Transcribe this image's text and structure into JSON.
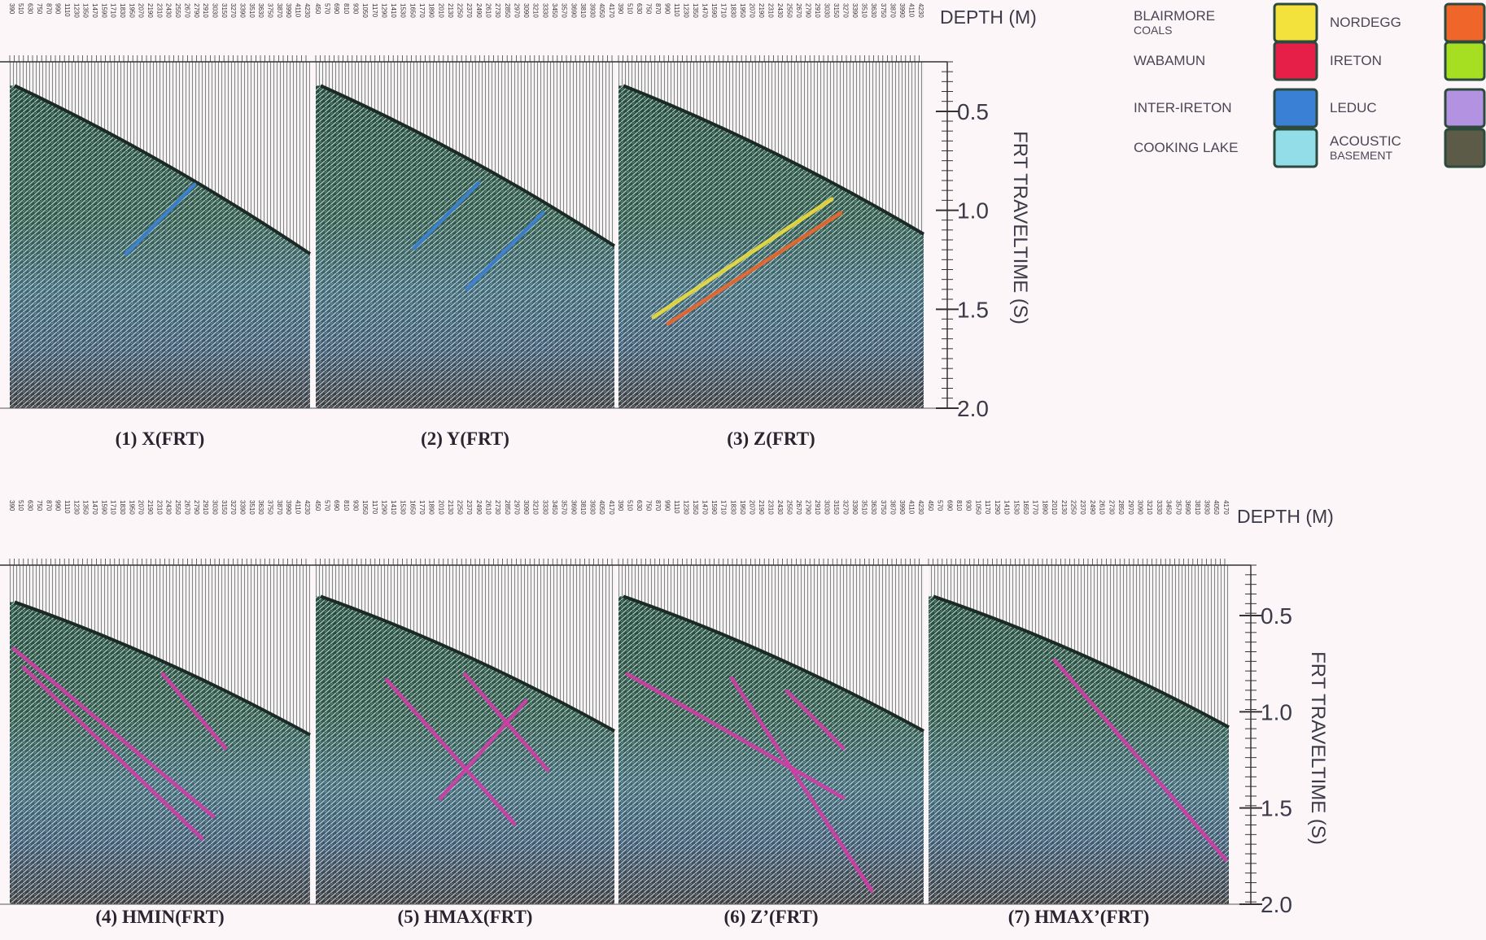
{
  "rows": [
    {
      "depth_label": "DEPTH (M)",
      "axis_label": "FRT TRAVELTIME (S)",
      "ticks": [
        0.5,
        {
          "value": 1,
          "label": "1.0"
        },
        1.5,
        {
          "value": 2,
          "label": "2.0"
        }
      ],
      "panels": [
        {
          "label": "(1) X(FRT)",
          "depths": [
            390,
            510,
            630,
            750,
            870,
            990,
            1110,
            1230,
            1350,
            1470,
            1590,
            1710,
            1830,
            1950,
            2070,
            2190,
            2310,
            2430,
            2550,
            2670,
            2790,
            2910,
            3030,
            3150,
            3270,
            3390,
            3510,
            3630,
            3750,
            3870,
            3990,
            4110,
            4230
          ]
        },
        {
          "label": "(2) Y(FRT)",
          "depths": [
            450,
            570,
            690,
            810,
            930,
            1050,
            1170,
            1290,
            1410,
            1530,
            1650,
            1770,
            1890,
            2010,
            2130,
            2250,
            2370,
            2490,
            2610,
            2730,
            2850,
            2970,
            3090,
            3210,
            3330,
            3450,
            3570,
            3690,
            3810,
            3930,
            4050,
            4170
          ]
        },
        {
          "label": "(3) Z(FRT)",
          "depths": [
            390,
            510,
            630,
            750,
            870,
            990,
            1110,
            1230,
            1350,
            1470,
            1590,
            1710,
            1830,
            1950,
            2070,
            2190,
            2310,
            2430,
            2550,
            2670,
            2790,
            2910,
            3030,
            3150,
            3270,
            3390,
            3510,
            3630,
            3750,
            3870,
            3990,
            4110,
            4230
          ]
        }
      ]
    },
    {
      "depth_label": "DEPTH (M)",
      "axis_label": "FRT TRAVELTIME (S)",
      "ticks": [
        0.5,
        {
          "value": 1,
          "label": "1.0"
        },
        1.5,
        {
          "value": 2,
          "label": "2.0"
        }
      ],
      "panels": [
        {
          "label": "(4) HMIN(FRT)",
          "depths": [
            390,
            510,
            630,
            750,
            870,
            990,
            1110,
            1230,
            1350,
            1470,
            1590,
            1710,
            1830,
            1950,
            2070,
            2190,
            2310,
            2430,
            2550,
            2670,
            2790,
            2910,
            3030,
            3150,
            3270,
            3390,
            3510,
            3630,
            3750,
            3870,
            3990,
            4110,
            4230
          ]
        },
        {
          "label": "(5) HMAX(FRT)",
          "depths": [
            450,
            570,
            690,
            810,
            930,
            1050,
            1170,
            1290,
            1410,
            1530,
            1650,
            1770,
            1890,
            2010,
            2130,
            2250,
            2370,
            2490,
            2610,
            2730,
            2850,
            2970,
            3090,
            3210,
            3330,
            3450,
            3570,
            3690,
            3810,
            3930,
            4050,
            4170
          ]
        },
        {
          "label": "(6) Z’(FRT)",
          "depths": [
            390,
            510,
            630,
            750,
            870,
            990,
            1110,
            1230,
            1350,
            1470,
            1590,
            1710,
            1830,
            1950,
            2070,
            2190,
            2310,
            2430,
            2550,
            2670,
            2790,
            2910,
            3030,
            3150,
            3270,
            3390,
            3510,
            3630,
            3750,
            3870,
            3990,
            4110,
            4230
          ]
        },
        {
          "label": "(7) HMAX’(FRT)",
          "depths": [
            450,
            570,
            690,
            810,
            930,
            1050,
            1170,
            1290,
            1410,
            1530,
            1650,
            1770,
            1890,
            2010,
            2130,
            2250,
            2370,
            2490,
            2610,
            2730,
            2850,
            2970,
            3090,
            3210,
            3330,
            3450,
            3570,
            3690,
            3810,
            3930,
            4050,
            4170
          ]
        }
      ]
    }
  ],
  "legend": {
    "items": [
      {
        "lines": [
          "BLAIRMORE",
          "COALS"
        ],
        "color": "#f3e23c"
      },
      {
        "lines": [
          "WABAMUN"
        ],
        "color": "#e51f48"
      },
      {
        "lines": [
          "INTER-IRETON"
        ],
        "color": "#3a80d4"
      },
      {
        "lines": [
          "COOKING LAKE"
        ],
        "color": "#93dde8"
      },
      {
        "lines": [
          "NORDEGG"
        ],
        "color": "#f0652a"
      },
      {
        "lines": [
          "IRETON"
        ],
        "color": "#a6de22"
      },
      {
        "lines": [
          "LEDUC"
        ],
        "color": "#b392e2"
      },
      {
        "lines": [
          "ACOUSTIC",
          "BASEMENT"
        ],
        "color": "#5c5b48"
      }
    ]
  }
}
